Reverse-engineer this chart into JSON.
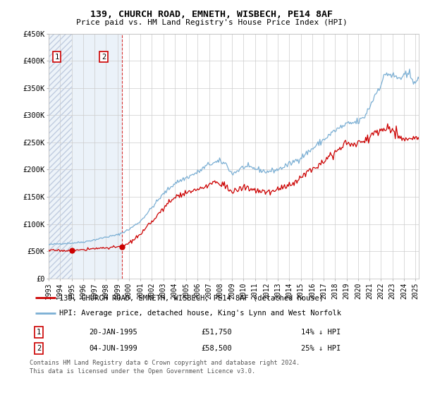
{
  "title1": "139, CHURCH ROAD, EMNETH, WISBECH, PE14 8AF",
  "title2": "Price paid vs. HM Land Registry's House Price Index (HPI)",
  "legend_line1": "139, CHURCH ROAD, EMNETH, WISBECH, PE14 8AF (detached house)",
  "legend_line2": "HPI: Average price, detached house, King's Lynn and West Norfolk",
  "footnote1": "Contains HM Land Registry data © Crown copyright and database right 2024.",
  "footnote2": "This data is licensed under the Open Government Licence v3.0.",
  "sale1_date": "20-JAN-1995",
  "sale1_price": 51750,
  "sale1_note": "14% ↓ HPI",
  "sale1_year": 1995.055,
  "sale2_date": "04-JUN-1999",
  "sale2_price": 58500,
  "sale2_note": "25% ↓ HPI",
  "sale2_year": 1999.42,
  "xmin": 1993.0,
  "xmax": 2025.3,
  "ylim": [
    0,
    450000
  ],
  "yticks": [
    0,
    50000,
    100000,
    150000,
    200000,
    250000,
    300000,
    350000,
    400000,
    450000
  ],
  "ytick_labels": [
    "£0",
    "£50K",
    "£100K",
    "£150K",
    "£200K",
    "£250K",
    "£300K",
    "£350K",
    "£400K",
    "£450K"
  ],
  "xtick_years": [
    1993,
    1994,
    1995,
    1996,
    1997,
    1998,
    1999,
    2000,
    2001,
    2002,
    2003,
    2004,
    2005,
    2006,
    2007,
    2008,
    2009,
    2010,
    2011,
    2012,
    2013,
    2014,
    2015,
    2016,
    2017,
    2018,
    2019,
    2020,
    2021,
    2022,
    2023,
    2024,
    2025
  ],
  "hpi_color": "#7bafd4",
  "price_color": "#cc0000",
  "sale_marker_color": "#cc0000",
  "hatch_color": "#c0cce0",
  "shading_color": "#dce8f5",
  "grid_color": "#cccccc",
  "background_color": "#ffffff",
  "hpi_noise_scale": 0.012,
  "price_noise_scale": 0.018
}
